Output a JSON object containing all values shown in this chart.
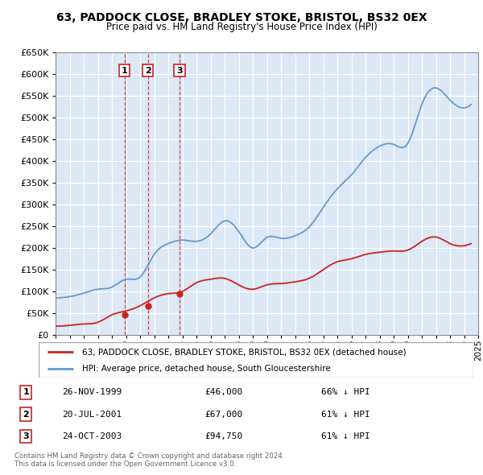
{
  "title1": "63, PADDOCK CLOSE, BRADLEY STOKE, BRISTOL, BS32 0EX",
  "title2": "Price paid vs. HM Land Registry's House Price Index (HPI)",
  "bg_color": "#dce8f5",
  "hpi_color": "#6699cc",
  "price_color": "#cc2222",
  "legend_label_price": "63, PADDOCK CLOSE, BRADLEY STOKE, BRISTOL, BS32 0EX (detached house)",
  "legend_label_hpi": "HPI: Average price, detached house, South Gloucestershire",
  "footer1": "Contains HM Land Registry data © Crown copyright and database right 2024.",
  "footer2": "This data is licensed under the Open Government Licence v3.0.",
  "transactions": [
    {
      "num": 1,
      "date": "26-NOV-1999",
      "price": 46000,
      "hpi_pct": "66% ↓ HPI",
      "x_year": 1999.9
    },
    {
      "num": 2,
      "date": "20-JUL-2001",
      "price": 67000,
      "hpi_pct": "61% ↓ HPI",
      "x_year": 2001.55
    },
    {
      "num": 3,
      "date": "24-OCT-2003",
      "price": 94750,
      "hpi_pct": "61% ↓ HPI",
      "x_year": 2003.8
    }
  ],
  "hpi_years": [
    1995,
    1996,
    1997,
    1998,
    1999,
    2000,
    2001,
    2002,
    2003,
    2004,
    2005,
    2006,
    2007,
    2008,
    2009,
    2010,
    2011,
    2012,
    2013,
    2014,
    2015,
    2016,
    2017,
    2018,
    2019,
    2020,
    2021,
    2022,
    2023,
    2024,
    2024.5
  ],
  "hpi_vals": [
    85000,
    88000,
    96000,
    105000,
    110000,
    128000,
    133000,
    185000,
    210000,
    218000,
    215000,
    232000,
    262000,
    238000,
    200000,
    224000,
    222000,
    228000,
    248000,
    293000,
    336000,
    368000,
    408000,
    434000,
    438000,
    440000,
    530000,
    568000,
    540000,
    522000,
    530000
  ],
  "price_years": [
    1995,
    1996,
    1997,
    1998,
    1999,
    2000,
    2001,
    2002,
    2003,
    2004,
    2005,
    2006,
    2007,
    2008,
    2009,
    2010,
    2011,
    2012,
    2013,
    2014,
    2015,
    2016,
    2017,
    2018,
    2019,
    2020,
    2021,
    2022,
    2023,
    2024,
    2024.5
  ],
  "price_vals": [
    20000,
    22000,
    25000,
    29000,
    46000,
    55000,
    67000,
    85000,
    94750,
    100000,
    120000,
    128000,
    130000,
    115000,
    105000,
    115000,
    118000,
    122000,
    130000,
    150000,
    168000,
    175000,
    185000,
    190000,
    193000,
    195000,
    215000,
    225000,
    210000,
    205000,
    210000
  ],
  "ylim": [
    0,
    650000
  ],
  "xlim": [
    1995,
    2025
  ],
  "yticks": [
    0,
    50000,
    100000,
    150000,
    200000,
    250000,
    300000,
    350000,
    400000,
    450000,
    500000,
    550000,
    600000,
    650000
  ],
  "xticks": [
    1995,
    1996,
    1997,
    1998,
    1999,
    2000,
    2001,
    2002,
    2003,
    2004,
    2005,
    2006,
    2007,
    2008,
    2009,
    2010,
    2011,
    2012,
    2013,
    2014,
    2015,
    2016,
    2017,
    2018,
    2019,
    2020,
    2021,
    2022,
    2023,
    2024,
    2025
  ]
}
